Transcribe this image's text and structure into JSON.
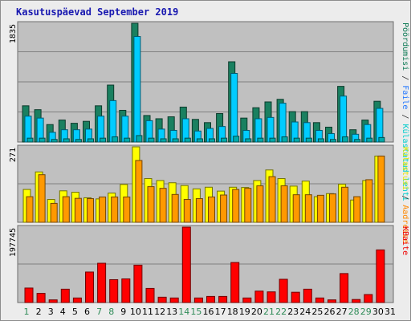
{
  "title": "Kasutuspäevad September 2019",
  "colors": {
    "background": "#ececec",
    "plot": "#c0c0c0",
    "grid": "#808080",
    "title": "#1818b0",
    "weekday_label": "#000000",
    "weekend_label": "#2e8b57"
  },
  "right_legend": {
    "top": [
      {
        "text": "Pöördumisi",
        "color": "#0d7a55"
      },
      {
        "text": " / ",
        "color": "#333333"
      },
      {
        "text": "Faile",
        "color": "#2277ff"
      },
      {
        "text": " / ",
        "color": "#333333"
      },
      {
        "text": "Külastatud lehti",
        "color": "#00cccc"
      }
    ],
    "middle": [
      {
        "text": "Külastusi",
        "color": "#e6e600"
      },
      {
        "text": " / ",
        "color": "#333333"
      },
      {
        "text": "Aadresse",
        "color": "#ff8800"
      }
    ],
    "bottom": [
      {
        "text": "KBaite",
        "color": "#ee0000"
      }
    ]
  },
  "chart_data": [
    {
      "type": "bar",
      "panel": "top",
      "ylabel": "1835",
      "ymax": 1835,
      "series": [
        {
          "name": "Pöördumisi",
          "color": "#1a8060",
          "values": [
            560,
            500,
            270,
            340,
            290,
            320,
            560,
            880,
            490,
            1835,
            410,
            360,
            390,
            540,
            350,
            300,
            440,
            1240,
            370,
            530,
            620,
            660,
            470,
            470,
            300,
            230,
            860,
            190,
            340,
            630
          ]
        },
        {
          "name": "Faile",
          "color": "#00ccff",
          "values": [
            400,
            370,
            150,
            190,
            190,
            200,
            400,
            640,
            400,
            1630,
            330,
            200,
            180,
            360,
            170,
            210,
            240,
            1060,
            180,
            360,
            380,
            600,
            310,
            300,
            180,
            130,
            710,
            120,
            270,
            520
          ]
        },
        {
          "name": "Külastatud lehti",
          "color": "#00aaaa",
          "values": [
            60,
            60,
            40,
            50,
            40,
            50,
            60,
            80,
            60,
            100,
            60,
            50,
            50,
            60,
            50,
            50,
            60,
            90,
            50,
            60,
            60,
            80,
            60,
            60,
            50,
            40,
            80,
            40,
            60,
            70
          ]
        }
      ]
    },
    {
      "type": "bar",
      "panel": "middle",
      "ylabel": "271",
      "ymax": 271,
      "series": [
        {
          "name": "Külastusi",
          "color": "#ffff00",
          "values": [
            118,
            181,
            82,
            113,
            108,
            88,
            84,
            105,
            136,
            271,
            157,
            150,
            142,
            132,
            120,
            126,
            112,
            126,
            125,
            150,
            188,
            157,
            130,
            148,
            92,
            103,
            137,
            80,
            150,
            238
          ]
        },
        {
          "name": "Aadresse",
          "color": "#ff9900",
          "values": [
            92,
            171,
            68,
            92,
            86,
            85,
            91,
            91,
            91,
            222,
            128,
            122,
            100,
            82,
            85,
            91,
            98,
            118,
            122,
            131,
            164,
            131,
            99,
            99,
            97,
            102,
            126,
            92,
            153,
            238
          ]
        }
      ]
    },
    {
      "type": "bar",
      "panel": "bottom",
      "ylabel": "197745",
      "ymax": 197745,
      "series": [
        {
          "name": "KBaite",
          "color": "#ff0000",
          "values": [
            38000,
            24000,
            7000,
            35000,
            12000,
            80000,
            103000,
            60000,
            62000,
            98000,
            37000,
            14000,
            12000,
            197745,
            12000,
            16000,
            16000,
            105000,
            12000,
            30000,
            28000,
            61000,
            27000,
            35000,
            12000,
            7000,
            76000,
            8000,
            21000,
            138000
          ]
        }
      ]
    }
  ],
  "days": [
    "1",
    "2",
    "3",
    "4",
    "5",
    "6",
    "7",
    "8",
    "9",
    "10",
    "11",
    "12",
    "13",
    "14",
    "15",
    "16",
    "17",
    "18",
    "19",
    "20",
    "21",
    "22",
    "23",
    "24",
    "25",
    "26",
    "27",
    "28",
    "29",
    "30",
    "31"
  ],
  "weekend_days": [
    "1",
    "7",
    "8",
    "14",
    "15",
    "21",
    "22",
    "28",
    "29"
  ]
}
